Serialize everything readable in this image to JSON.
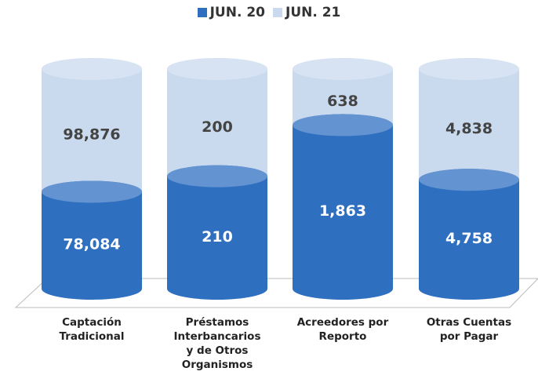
{
  "chart_data": {
    "type": "stacked_bar_100",
    "categories": [
      "Captación Tradicional",
      "Préstamos Interbancarios y de Otros Organismos",
      "Acreedores por Reporto",
      "Otras Cuentas por Pagar"
    ],
    "series": [
      {
        "name": "JUN. 20",
        "color": "#2f6fc0",
        "values": [
          78084,
          210,
          1863,
          4758
        ],
        "value_labels": [
          "78,084",
          "210",
          "1,863",
          "4,758"
        ]
      },
      {
        "name": "JUN. 21",
        "color": "#c9d9ee",
        "values": [
          98876,
          200,
          638,
          4838
        ],
        "value_labels": [
          "98,876",
          "200",
          "638",
          "4,838"
        ]
      }
    ],
    "legend": "top"
  }
}
